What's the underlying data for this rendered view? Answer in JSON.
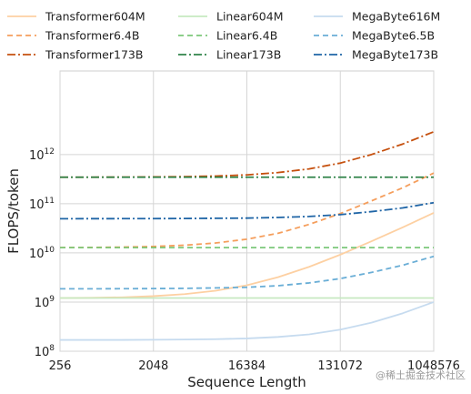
{
  "chart_data": {
    "type": "line",
    "xlabel": "Sequence Length",
    "ylabel": "FLOPS/token",
    "x_scale": "log2",
    "y_scale": "log10",
    "xlim": [
      256,
      1048576
    ],
    "ylim": [
      100000000,
      50000000000000
    ],
    "x_ticks": [
      256,
      2048,
      16384,
      131072,
      1048576
    ],
    "x_tick_labels": [
      "256",
      "2048",
      "16384",
      "131072",
      "1048576"
    ],
    "y_ticks": [
      100000000,
      1000000000,
      10000000000,
      100000000000,
      1000000000000
    ],
    "y_tick_exponents": [
      "8",
      "9",
      "10",
      "11",
      "12"
    ],
    "y_tick_base": "10",
    "grid": true,
    "legend_position": "top",
    "x": [
      256,
      512,
      1024,
      2048,
      4096,
      8192,
      16384,
      32768,
      65536,
      131072,
      262144,
      524288,
      1048576
    ],
    "series": [
      {
        "name": "Transformer604M",
        "color": "#fdd0a2",
        "dash": "solid",
        "values": [
          1210000000.0,
          1220000000.0,
          1250000000.0,
          1320000000.0,
          1450000000.0,
          1700000000.0,
          2200000000.0,
          3200000000.0,
          5200000000.0,
          9200000000.0,
          17200000000.0,
          33000000000.0,
          65000000000.0
        ]
      },
      {
        "name": "Transformer6.4B",
        "color": "#f59e5c",
        "dash": "dashed",
        "values": [
          12800000000.0,
          12900000000.0,
          13100000000.0,
          13500000000.0,
          14300000000.0,
          15900000000.0,
          19000000000.0,
          25000000000.0,
          38000000000.0,
          63000000000.0,
          114000000000.0,
          210000000000.0,
          420000000000.0
        ]
      },
      {
        "name": "Transformer173B",
        "color": "#c5500e",
        "dash": "dashdot",
        "values": [
          346000000000.0,
          346000000000.0,
          347000000000.0,
          350000000000.0,
          355000000000.0,
          365000000000.0,
          385000000000.0,
          430000000000.0,
          510000000000.0,
          670000000000.0,
          1000000000000.0,
          1630000000000.0,
          2900000000000.0
        ]
      },
      {
        "name": "Linear604M",
        "color": "#c7e9c0",
        "dash": "solid",
        "values": [
          1210000000.0,
          1210000000.0,
          1210000000.0,
          1210000000.0,
          1210000000.0,
          1210000000.0,
          1210000000.0,
          1210000000.0,
          1210000000.0,
          1210000000.0,
          1210000000.0,
          1210000000.0,
          1210000000.0
        ]
      },
      {
        "name": "Linear6.4B",
        "color": "#7cc87a",
        "dash": "dashed",
        "values": [
          12800000000.0,
          12800000000.0,
          12800000000.0,
          12800000000.0,
          12800000000.0,
          12800000000.0,
          12800000000.0,
          12800000000.0,
          12800000000.0,
          12800000000.0,
          12800000000.0,
          12800000000.0,
          12800000000.0
        ]
      },
      {
        "name": "Linear173B",
        "color": "#31844a",
        "dash": "dashdot",
        "values": [
          346000000000.0,
          346000000000.0,
          346000000000.0,
          346000000000.0,
          346000000000.0,
          346000000000.0,
          346000000000.0,
          346000000000.0,
          346000000000.0,
          346000000000.0,
          346000000000.0,
          346000000000.0,
          346000000000.0
        ]
      },
      {
        "name": "MegaByte616M",
        "color": "#c6dbef",
        "dash": "solid",
        "values": [
          170000000.0,
          170000000.0,
          170000000.0,
          171000000.0,
          173000000.0,
          176000000.0,
          182000000.0,
          195000000.0,
          220000000.0,
          275000000.0,
          380000000.0,
          590000000.0,
          1000000000.0
        ]
      },
      {
        "name": "MegaByte6.5B",
        "color": "#6aaed6",
        "dash": "dashed",
        "values": [
          1860000000.0,
          1860000000.0,
          1870000000.0,
          1880000000.0,
          1900000000.0,
          1940000000.0,
          2000000000.0,
          2150000000.0,
          2450000000.0,
          3000000000.0,
          4000000000.0,
          5600000000.0,
          8500000000.0
        ]
      },
      {
        "name": "MegaByte173B",
        "color": "#1f65a6",
        "dash": "dashdot",
        "values": [
          49500000000.0,
          49600000000.0,
          49700000000.0,
          49800000000.0,
          50000000000.0,
          50500000000.0,
          51000000000.0,
          52500000000.0,
          55000000000.0,
          60000000000.0,
          69000000000.0,
          82000000000.0,
          105000000000.0
        ]
      }
    ]
  },
  "watermark": "@稀土掘金技术社区"
}
